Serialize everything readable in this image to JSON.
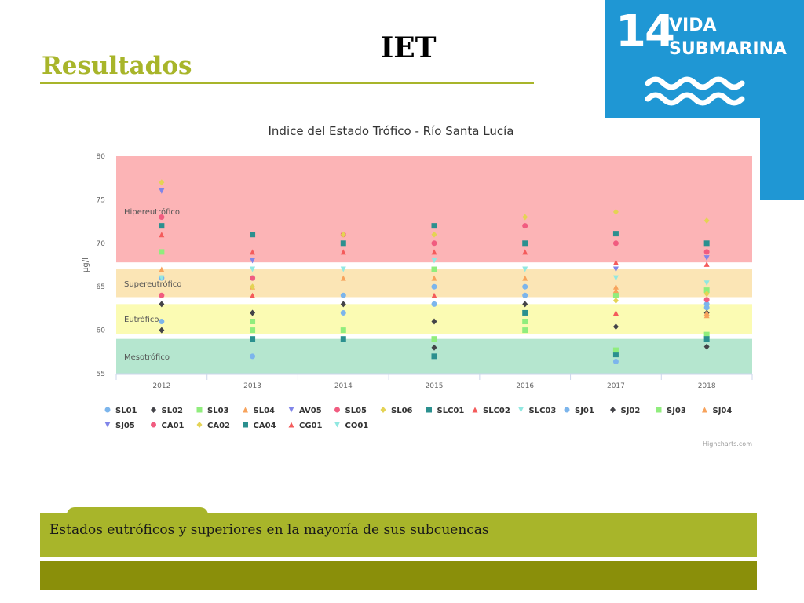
{
  "slide": {
    "title": "Resultados",
    "center_title": "IET",
    "sdg_number": "14",
    "sdg_line1": "VIDA",
    "sdg_line2": "SUBMARINA",
    "footer_text": "Estados eutróficos y superiores en la mayoría de sus subcuencas",
    "colors": {
      "olive": "#a8b52a",
      "dark_olive": "#8a8f0a",
      "sdg_blue": "#1f97d4"
    }
  },
  "chart_data": {
    "type": "scatter",
    "title": "Indice del Estado Trófico - Río Santa Lucía",
    "ylabel": "µg/l",
    "xlabel": "",
    "ylim": [
      55,
      80
    ],
    "yticks": [
      55,
      60,
      65,
      70,
      75,
      80
    ],
    "categories": [
      "2012",
      "2013",
      "2014",
      "2015",
      "2016",
      "2017",
      "2018"
    ],
    "credits": "Highcharts.com",
    "legend_position": "bottom",
    "bands": [
      {
        "label": "Mesotrófico",
        "from": 55,
        "to": 59,
        "color": "#b5e6cf"
      },
      {
        "label": "Eutrófico",
        "from": 59.6,
        "to": 63,
        "color": "#fbfbb3"
      },
      {
        "label": "Supereutrófico",
        "from": 63.8,
        "to": 67,
        "color": "#fbe5b5"
      },
      {
        "label": "Hipereutrófico",
        "from": 67.8,
        "to": 80,
        "color": "#fcb4b6"
      }
    ],
    "series": [
      {
        "name": "SL01",
        "symbol": "circle",
        "color": "#7cb5ec",
        "values": [
          66,
          66,
          64,
          65,
          64,
          64,
          63
        ]
      },
      {
        "name": "SL02",
        "symbol": "diamond",
        "color": "#434348",
        "values": [
          60,
          62,
          63,
          61,
          63,
          60.4,
          62
        ]
      },
      {
        "name": "SL03",
        "symbol": "square",
        "color": "#90ed7d",
        "values": [
          69,
          61,
          60,
          67,
          60,
          64,
          64.6
        ]
      },
      {
        "name": "SL04",
        "symbol": "triangle",
        "color": "#f7a35c",
        "values": [
          67,
          65,
          66,
          66,
          66,
          64.6,
          62
        ]
      },
      {
        "name": "AV05",
        "symbol": "triangle-down",
        "color": "#8085e9",
        "values": [
          76,
          68,
          null,
          null,
          null,
          67,
          68.3
        ]
      },
      {
        "name": "SL05",
        "symbol": "circle",
        "color": "#f15c80",
        "values": [
          73,
          66,
          71,
          70,
          72,
          70,
          69
        ]
      },
      {
        "name": "SL06",
        "symbol": "diamond",
        "color": "#e4d354",
        "values": [
          77,
          65,
          71,
          71,
          73,
          73.6,
          72.6
        ]
      },
      {
        "name": "SLC01",
        "symbol": "square",
        "color": "#2b908f",
        "values": [
          72,
          71,
          70,
          72,
          70,
          71.1,
          70
        ]
      },
      {
        "name": "SLC02",
        "symbol": "triangle",
        "color": "#f45b5b",
        "values": [
          71,
          69,
          69,
          69,
          69,
          67.8,
          67.6
        ]
      },
      {
        "name": "SLC03",
        "symbol": "triangle-down",
        "color": "#91e8e1",
        "values": [
          66,
          67,
          67,
          68,
          67,
          66,
          65.4
        ]
      },
      {
        "name": "SJ01",
        "symbol": "circle",
        "color": "#7cb5ec",
        "values": [
          61,
          57,
          62,
          63,
          65,
          56.4,
          62.6
        ]
      },
      {
        "name": "SJ02",
        "symbol": "diamond",
        "color": "#434348",
        "values": [
          63,
          null,
          null,
          58,
          null,
          null,
          58.1
        ]
      },
      {
        "name": "SJ03",
        "symbol": "square",
        "color": "#90ed7d",
        "values": [
          null,
          60,
          null,
          59,
          61,
          57.7,
          59.5
        ]
      },
      {
        "name": "SJ04",
        "symbol": "triangle",
        "color": "#f7a35c",
        "values": [
          null,
          null,
          null,
          null,
          null,
          65,
          61.7
        ]
      },
      {
        "name": "SJ05",
        "symbol": "triangle-down",
        "color": "#8085e9",
        "values": [
          null,
          null,
          null,
          null,
          null,
          null,
          null
        ]
      },
      {
        "name": "CA01",
        "symbol": "circle",
        "color": "#f15c80",
        "values": [
          64,
          null,
          null,
          null,
          null,
          null,
          63.5
        ]
      },
      {
        "name": "CA02",
        "symbol": "diamond",
        "color": "#e4d354",
        "values": [
          null,
          null,
          null,
          null,
          null,
          63.4,
          64.2
        ]
      },
      {
        "name": "CA04",
        "symbol": "square",
        "color": "#2b908f",
        "values": [
          null,
          59,
          59,
          57,
          62,
          57.2,
          59
        ]
      },
      {
        "name": "CG01",
        "symbol": "triangle",
        "color": "#f45b5b",
        "values": [
          null,
          64,
          null,
          64,
          null,
          62,
          null
        ]
      },
      {
        "name": "CO01",
        "symbol": "triangle-down",
        "color": "#91e8e1",
        "values": [
          null,
          null,
          null,
          null,
          null,
          null,
          null
        ]
      }
    ]
  }
}
